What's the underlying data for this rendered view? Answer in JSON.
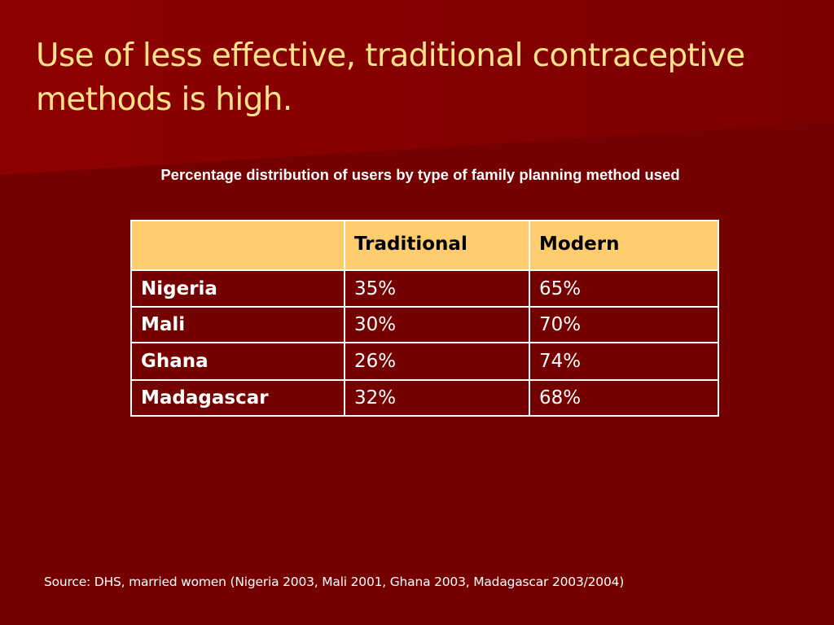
{
  "colors": {
    "background": "#740000",
    "header_band": "#8e0000",
    "title": "#ffe28a",
    "table_header": "#ffcd6e",
    "table_border": "#ffffff",
    "text": "#ffffff"
  },
  "slide": {
    "title": "Use of less effective, traditional contraceptive methods is high.",
    "subtitle": "Percentage distribution of users by type of family planning method used",
    "source": "Source: DHS, married women (Nigeria 2003, Mali 2001, Ghana 2003, Madagascar 2003/2004)"
  },
  "table": {
    "headers": [
      "",
      "Traditional",
      "Modern"
    ],
    "rows": [
      {
        "country": "Nigeria",
        "traditional": "35%",
        "modern": "65%"
      },
      {
        "country": "Mali",
        "traditional": "30%",
        "modern": "70%"
      },
      {
        "country": "Ghana",
        "traditional": "26%",
        "modern": "74%"
      },
      {
        "country": "Madagascar",
        "traditional": "32%",
        "modern": "68%"
      }
    ]
  },
  "chart_data": {
    "type": "table",
    "columns": [
      "",
      "Traditional",
      "Modern"
    ],
    "rows": [
      [
        "Nigeria",
        "35%",
        "65%"
      ],
      [
        "Mali",
        "30%",
        "70%"
      ],
      [
        "Ghana",
        "26%",
        "74%"
      ],
      [
        "Madagascar",
        "32%",
        "68%"
      ]
    ],
    "title": "Percentage distribution of users by type of family planning method used"
  }
}
